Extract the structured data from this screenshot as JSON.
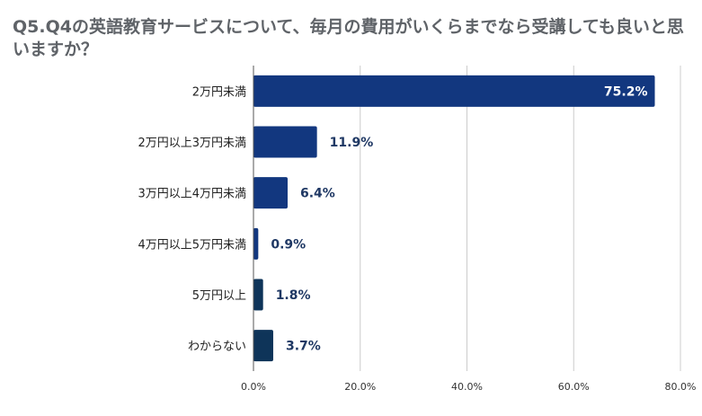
{
  "chart_data": {
    "type": "bar",
    "orientation": "horizontal",
    "title": "Q5.Q4の英語教育サービスについて、毎月の費用がいくらまでなら受講しても良いと思いますか？",
    "categories": [
      "2万円未満",
      "2万円以上3万円未満",
      "3万円以上4万円未満",
      "4万円以上5万円未満",
      "5万円以上",
      "わからない"
    ],
    "values": [
      75.2,
      11.9,
      6.4,
      0.9,
      1.8,
      3.7
    ],
    "value_labels": [
      "75.2%",
      "11.9%",
      "6.4%",
      "0.9%",
      "1.8%",
      "3.7%"
    ],
    "xlim": [
      0,
      80
    ],
    "x_ticks": [
      0,
      20,
      40,
      60,
      80
    ],
    "x_tick_labels": [
      "0.0%",
      "20.0%",
      "40.0%",
      "60.0%",
      "80.0%"
    ],
    "grid": true,
    "legend": "none",
    "colors": {
      "bar_primary": "#12377f",
      "bar_secondary": "#0e3459",
      "label_dark": "#1f3864",
      "grid": "#cccccc",
      "axis": "#555555"
    }
  }
}
